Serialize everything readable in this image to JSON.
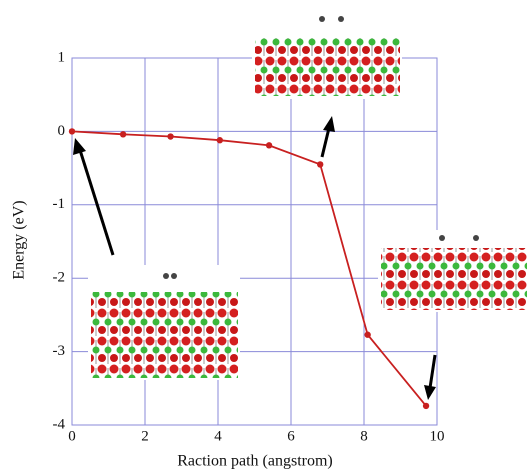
{
  "chart_data": {
    "type": "line",
    "x_label": "Raction path (angstrom)",
    "y_label": "Energy (eV)",
    "x": [
      0,
      1.4,
      2.7,
      4.05,
      5.4,
      6.8,
      8.1,
      9.7
    ],
    "series": [
      {
        "color": "#c82020",
        "values": [
          0,
          -0.04,
          -0.07,
          -0.12,
          -0.19,
          -0.45,
          -2.77,
          -3.74
        ]
      }
    ],
    "xlim": [
      0,
      10
    ],
    "xticks": [
      0,
      2,
      4,
      6,
      8,
      10
    ],
    "ylim": [
      -4,
      1
    ],
    "yticks": [
      1,
      0,
      -1,
      -2,
      -3,
      -4
    ],
    "grid": true
  }
}
